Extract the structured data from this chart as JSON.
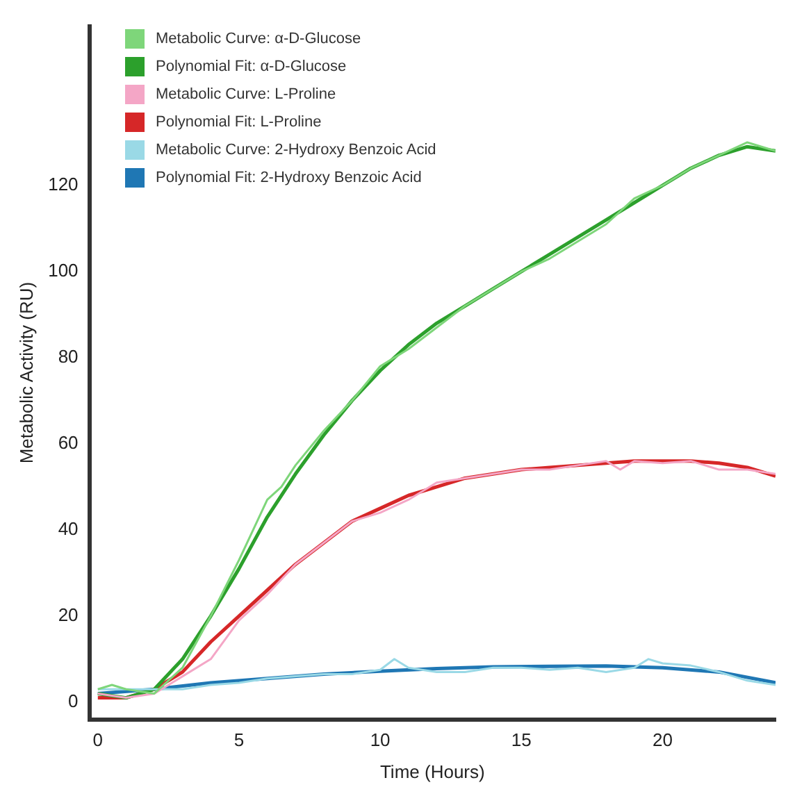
{
  "chart_data": {
    "type": "line",
    "xlabel": "Time (Hours)",
    "ylabel": "Metabolic Activity (RU)",
    "xlim": [
      -0.3,
      24
    ],
    "xticks": [
      0,
      5,
      10,
      15,
      20
    ],
    "ylim": [
      -4,
      157
    ],
    "yticks": [
      0,
      20,
      40,
      60,
      80,
      100,
      120
    ],
    "grid": false,
    "legend": "top left",
    "marker": "none",
    "series": [
      {
        "name": "Metabolic Curve: α-D-Glucose",
        "color": "#7ed67a",
        "x": [
          0,
          0.5,
          1,
          2,
          3,
          4,
          5,
          5.5,
          6,
          6.5,
          7,
          8,
          9,
          10,
          10.5,
          11,
          12,
          13,
          14,
          15,
          16,
          17,
          18,
          19,
          20,
          21,
          22,
          23,
          24
        ],
        "values": [
          3,
          4,
          3,
          2,
          8,
          20,
          33,
          40,
          47,
          50,
          55,
          63,
          70,
          78,
          80,
          82,
          87,
          92,
          96,
          100,
          103,
          107,
          111,
          117,
          120,
          124,
          127,
          130,
          128
        ]
      },
      {
        "name": "Polynomial Fit: α-D-Glucose",
        "color": "#2ca02c",
        "x": [
          0,
          1,
          2,
          3,
          4,
          5,
          6,
          7,
          8,
          9,
          10,
          11,
          12,
          13,
          14,
          15,
          16,
          17,
          18,
          19,
          20,
          21,
          22,
          23,
          24
        ],
        "values": [
          2,
          1,
          3,
          10,
          20,
          31,
          43,
          53,
          62,
          70,
          77,
          83,
          88,
          92,
          96,
          100,
          104,
          108,
          112,
          116,
          120,
          124,
          127,
          129,
          128
        ]
      },
      {
        "name": "Metabolic Curve: L-Proline",
        "color": "#f4a6c6",
        "x": [
          0,
          1,
          2,
          3,
          4,
          5,
          5.5,
          6,
          7,
          8,
          9,
          10,
          11,
          12,
          13,
          14,
          15,
          16,
          17,
          18,
          18.5,
          19,
          20,
          21,
          22,
          23,
          24
        ],
        "values": [
          2,
          1,
          2,
          6,
          10,
          19,
          22,
          25,
          32,
          37,
          42,
          44,
          47,
          51,
          52,
          53,
          54,
          54,
          55,
          56,
          54,
          56,
          55.5,
          56,
          54,
          54,
          53
        ]
      },
      {
        "name": "Polynomial Fit: L-Proline",
        "color": "#d62728",
        "x": [
          0,
          1,
          2,
          3,
          4,
          5,
          6,
          7,
          8,
          9,
          10,
          11,
          12,
          13,
          14,
          15,
          16,
          17,
          18,
          19,
          20,
          21,
          22,
          23,
          24
        ],
        "values": [
          1,
          1,
          3,
          7,
          14,
          20,
          26,
          32,
          37,
          42,
          45,
          48,
          50,
          52,
          53,
          54,
          54.5,
          55,
          55.5,
          56,
          56,
          56,
          55.5,
          54.5,
          52.5
        ]
      },
      {
        "name": "Metabolic Curve: 2-Hydroxy Benzoic Acid",
        "color": "#9ad9e6",
        "x": [
          0,
          1,
          2,
          3,
          4,
          5,
          6,
          7,
          8,
          9,
          10,
          10.5,
          11,
          12,
          13,
          14,
          15,
          16,
          17,
          18,
          19,
          19.5,
          20,
          21,
          22,
          23,
          24
        ],
        "values": [
          3,
          3,
          3,
          3,
          4,
          4.5,
          5.5,
          6,
          6.5,
          6.5,
          7.5,
          10,
          8,
          7,
          7,
          8,
          8,
          7.5,
          8,
          7,
          8,
          10,
          9,
          8.5,
          7,
          5,
          4
        ]
      },
      {
        "name": "Polynomial Fit: 2-Hydroxy Benzoic Acid",
        "color": "#1f77b4",
        "x": [
          0,
          2,
          4,
          6,
          8,
          10,
          12,
          14,
          16,
          18,
          20,
          22,
          24
        ],
        "values": [
          2,
          3,
          4.5,
          5.5,
          6.5,
          7.2,
          7.8,
          8.2,
          8.3,
          8.4,
          8,
          7,
          4.5
        ]
      }
    ]
  }
}
